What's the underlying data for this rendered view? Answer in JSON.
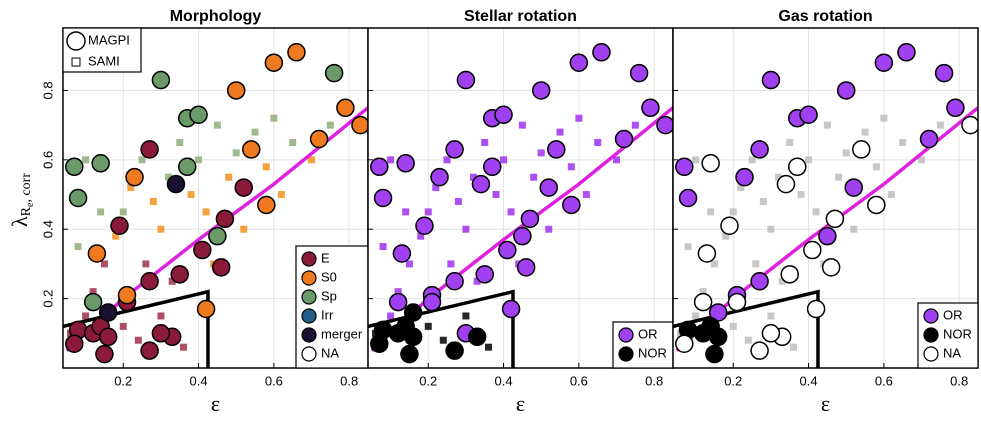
{
  "chart_data": [
    {
      "type": "scatter",
      "title": "Morphology",
      "xlabel": "ε",
      "ylabel": {
        "symbol": "λ",
        "sub": "R",
        "subsub": "e",
        "sub2": ", corr"
      },
      "xlim": [
        0.04,
        0.85
      ],
      "ylim": [
        0,
        0.98
      ],
      "xticks": [
        0.2,
        0.4,
        0.6,
        0.8
      ],
      "yticks": [
        0.2,
        0.4,
        0.6,
        0.8
      ],
      "show_ytick_labels": true,
      "grid": true,
      "marker_legend": [
        {
          "name": "MAGPI",
          "marker": "circle"
        },
        {
          "name": "SAMI",
          "marker": "square"
        }
      ],
      "legend": "lower right",
      "series": [
        {
          "marker": "square",
          "color": "#a0304a",
          "x": [
            0.1,
            0.12,
            0.15,
            0.06,
            0.2,
            0.3,
            0.36,
            0.24,
            0.33,
            0.26
          ],
          "y": [
            0.15,
            0.22,
            0.3,
            0.1,
            0.12,
            0.15,
            0.06,
            0.08,
            0.25,
            0.3
          ]
        },
        {
          "marker": "square",
          "color": "#f5901e",
          "x": [
            0.18,
            0.22,
            0.28,
            0.3,
            0.38,
            0.42,
            0.48,
            0.52,
            0.58,
            0.62,
            0.7,
            0.44
          ],
          "y": [
            0.38,
            0.52,
            0.48,
            0.4,
            0.5,
            0.45,
            0.55,
            0.4,
            0.58,
            0.5,
            0.6,
            0.3
          ]
        },
        {
          "marker": "square",
          "color": "#8fae7a",
          "x": [
            0.2,
            0.25,
            0.32,
            0.35,
            0.4,
            0.45,
            0.5,
            0.55,
            0.6,
            0.65,
            0.75,
            0.08,
            0.1,
            0.14
          ],
          "y": [
            0.45,
            0.6,
            0.55,
            0.65,
            0.6,
            0.7,
            0.62,
            0.68,
            0.72,
            0.65,
            0.7,
            0.35,
            0.6,
            0.45
          ]
        },
        {
          "name": "E",
          "marker": "circle",
          "color": "#8b1a3a",
          "x": [
            0.27,
            0.52,
            0.47,
            0.19,
            0.41,
            0.46,
            0.27,
            0.35,
            0.21,
            0.08,
            0.12,
            0.14,
            0.16,
            0.07,
            0.15,
            0.27,
            0.33,
            0.3
          ],
          "y": [
            0.63,
            0.52,
            0.43,
            0.41,
            0.34,
            0.29,
            0.25,
            0.27,
            0.19,
            0.11,
            0.1,
            0.12,
            0.09,
            0.07,
            0.04,
            0.05,
            0.09,
            0.1
          ]
        },
        {
          "name": "S0",
          "marker": "circle",
          "color": "#f07a20",
          "x": [
            0.66,
            0.6,
            0.5,
            0.83,
            0.79,
            0.72,
            0.54,
            0.23,
            0.58,
            0.13,
            0.21,
            0.42
          ],
          "y": [
            0.91,
            0.88,
            0.8,
            0.7,
            0.75,
            0.66,
            0.63,
            0.55,
            0.47,
            0.33,
            0.21,
            0.17
          ]
        },
        {
          "name": "Sp",
          "marker": "circle",
          "color": "#6a9a6a",
          "x": [
            0.76,
            0.3,
            0.37,
            0.4,
            0.07,
            0.14,
            0.37,
            0.08,
            0.45,
            0.12
          ],
          "y": [
            0.85,
            0.83,
            0.72,
            0.73,
            0.58,
            0.59,
            0.58,
            0.49,
            0.38,
            0.19
          ]
        },
        {
          "name": "Irr",
          "marker": "circle",
          "color": "#1f5f8a",
          "x": [],
          "y": []
        },
        {
          "name": "merger",
          "marker": "circle",
          "color": "#1a1030",
          "x": [
            0.34,
            0.16
          ],
          "y": [
            0.53,
            0.16
          ]
        },
        {
          "name": "NA",
          "marker": "circle",
          "color": "#ffffff",
          "x": [],
          "y": []
        }
      ],
      "lines": [
        {
          "color": "#e020e0",
          "x": [
            0.05,
            0.2,
            0.4,
            0.6,
            0.85
          ],
          "y": [
            0.05,
            0.2,
            0.37,
            0.53,
            0.75
          ]
        },
        {
          "color": "#000000",
          "x": [
            0.04,
            0.425,
            0.425
          ],
          "y": [
            0.12,
            0.22,
            0
          ]
        }
      ]
    },
    {
      "type": "scatter",
      "title": "Stellar rotation",
      "xlabel": "ε",
      "xlim": [
        0.04,
        0.85
      ],
      "ylim": [
        0,
        0.98
      ],
      "xticks": [
        0.2,
        0.4,
        0.6,
        0.8
      ],
      "yticks": [
        0.2,
        0.4,
        0.6,
        0.8
      ],
      "show_ytick_labels": false,
      "grid": true,
      "legend": "lower right",
      "series": [
        {
          "marker": "square",
          "color": "#a030f0",
          "x": [
            0.1,
            0.12,
            0.15,
            0.18,
            0.2,
            0.22,
            0.25,
            0.28,
            0.3,
            0.32,
            0.35,
            0.38,
            0.4,
            0.42,
            0.45,
            0.48,
            0.5,
            0.52,
            0.55,
            0.58,
            0.6,
            0.62,
            0.65,
            0.7,
            0.75,
            0.08,
            0.1,
            0.14,
            0.26,
            0.33,
            0.44
          ],
          "y": [
            0.15,
            0.22,
            0.3,
            0.38,
            0.45,
            0.52,
            0.6,
            0.48,
            0.4,
            0.55,
            0.65,
            0.5,
            0.6,
            0.45,
            0.7,
            0.55,
            0.62,
            0.4,
            0.68,
            0.58,
            0.72,
            0.5,
            0.65,
            0.6,
            0.7,
            0.35,
            0.6,
            0.45,
            0.3,
            0.25,
            0.3
          ]
        },
        {
          "marker": "square",
          "color": "#000000",
          "x": [
            0.06,
            0.2,
            0.3,
            0.36,
            0.24
          ],
          "y": [
            0.1,
            0.12,
            0.15,
            0.06,
            0.08
          ]
        },
        {
          "name": "OR",
          "marker": "circle",
          "color": "#a040f0",
          "x": [
            0.66,
            0.6,
            0.76,
            0.3,
            0.5,
            0.83,
            0.79,
            0.72,
            0.37,
            0.4,
            0.54,
            0.07,
            0.14,
            0.27,
            0.37,
            0.23,
            0.34,
            0.52,
            0.08,
            0.58,
            0.47,
            0.19,
            0.45,
            0.13,
            0.41,
            0.46,
            0.27,
            0.35,
            0.21,
            0.12,
            0.21,
            0.42,
            0.3
          ],
          "y": [
            0.91,
            0.88,
            0.85,
            0.83,
            0.8,
            0.7,
            0.75,
            0.66,
            0.72,
            0.73,
            0.63,
            0.58,
            0.59,
            0.63,
            0.58,
            0.55,
            0.53,
            0.52,
            0.49,
            0.47,
            0.43,
            0.41,
            0.38,
            0.33,
            0.34,
            0.29,
            0.25,
            0.27,
            0.21,
            0.19,
            0.19,
            0.17,
            0.1
          ]
        },
        {
          "name": "NOR",
          "marker": "circle",
          "color": "#000000",
          "x": [
            0.08,
            0.12,
            0.14,
            0.16,
            0.07,
            0.15,
            0.27,
            0.33,
            0.16
          ],
          "y": [
            0.11,
            0.1,
            0.12,
            0.09,
            0.07,
            0.04,
            0.05,
            0.09,
            0.16
          ]
        }
      ],
      "lines": [
        {
          "color": "#e020e0",
          "x": [
            0.05,
            0.2,
            0.4,
            0.6,
            0.85
          ],
          "y": [
            0.05,
            0.2,
            0.37,
            0.53,
            0.75
          ]
        },
        {
          "color": "#000000",
          "x": [
            0.04,
            0.425,
            0.425
          ],
          "y": [
            0.12,
            0.22,
            0
          ]
        }
      ]
    },
    {
      "type": "scatter",
      "title": "Gas rotation",
      "xlabel": "ε",
      "xlim": [
        0.04,
        0.85
      ],
      "ylim": [
        0,
        0.98
      ],
      "xticks": [
        0.2,
        0.4,
        0.6,
        0.8
      ],
      "yticks": [
        0.2,
        0.4,
        0.6,
        0.8
      ],
      "show_ytick_labels": false,
      "grid": true,
      "legend": "lower right",
      "series": [
        {
          "marker": "square",
          "color": "#bdbdbd",
          "x": [
            0.1,
            0.12,
            0.15,
            0.18,
            0.2,
            0.22,
            0.25,
            0.28,
            0.3,
            0.32,
            0.35,
            0.38,
            0.4,
            0.42,
            0.45,
            0.48,
            0.5,
            0.52,
            0.55,
            0.58,
            0.6,
            0.62,
            0.65,
            0.7,
            0.75,
            0.08,
            0.1,
            0.14,
            0.26,
            0.33,
            0.44,
            0.06,
            0.2,
            0.3,
            0.36,
            0.24
          ],
          "y": [
            0.15,
            0.22,
            0.3,
            0.38,
            0.45,
            0.52,
            0.6,
            0.48,
            0.4,
            0.55,
            0.65,
            0.5,
            0.6,
            0.45,
            0.7,
            0.55,
            0.62,
            0.4,
            0.68,
            0.58,
            0.72,
            0.5,
            0.65,
            0.6,
            0.7,
            0.35,
            0.6,
            0.45,
            0.3,
            0.25,
            0.3,
            0.1,
            0.12,
            0.15,
            0.06,
            0.08
          ]
        },
        {
          "name": "OR",
          "marker": "circle",
          "color": "#a040f0",
          "x": [
            0.66,
            0.6,
            0.76,
            0.3,
            0.5,
            0.79,
            0.72,
            0.37,
            0.4,
            0.07,
            0.27,
            0.23,
            0.52,
            0.08,
            0.45,
            0.27,
            0.21,
            0.16
          ],
          "y": [
            0.91,
            0.88,
            0.85,
            0.83,
            0.8,
            0.75,
            0.66,
            0.72,
            0.73,
            0.58,
            0.63,
            0.55,
            0.52,
            0.49,
            0.38,
            0.25,
            0.21,
            0.16
          ]
        },
        {
          "name": "NOR",
          "marker": "circle",
          "color": "#000000",
          "x": [
            0.08,
            0.12,
            0.14,
            0.16,
            0.15
          ],
          "y": [
            0.11,
            0.1,
            0.12,
            0.09,
            0.04
          ]
        },
        {
          "name": "NA",
          "marker": "circle",
          "color": "#ffffff",
          "x": [
            0.83,
            0.54,
            0.14,
            0.37,
            0.34,
            0.58,
            0.47,
            0.19,
            0.13,
            0.41,
            0.46,
            0.35,
            0.12,
            0.21,
            0.42,
            0.07,
            0.27,
            0.33,
            0.3
          ],
          "y": [
            0.7,
            0.63,
            0.59,
            0.58,
            0.53,
            0.47,
            0.43,
            0.41,
            0.33,
            0.34,
            0.29,
            0.27,
            0.19,
            0.19,
            0.17,
            0.07,
            0.05,
            0.09,
            0.1
          ]
        }
      ],
      "lines": [
        {
          "color": "#e020e0",
          "x": [
            0.05,
            0.2,
            0.4,
            0.6,
            0.85
          ],
          "y": [
            0.05,
            0.2,
            0.37,
            0.53,
            0.75
          ]
        },
        {
          "color": "#000000",
          "x": [
            0.04,
            0.425,
            0.425
          ],
          "y": [
            0.12,
            0.22,
            0
          ]
        }
      ]
    }
  ]
}
